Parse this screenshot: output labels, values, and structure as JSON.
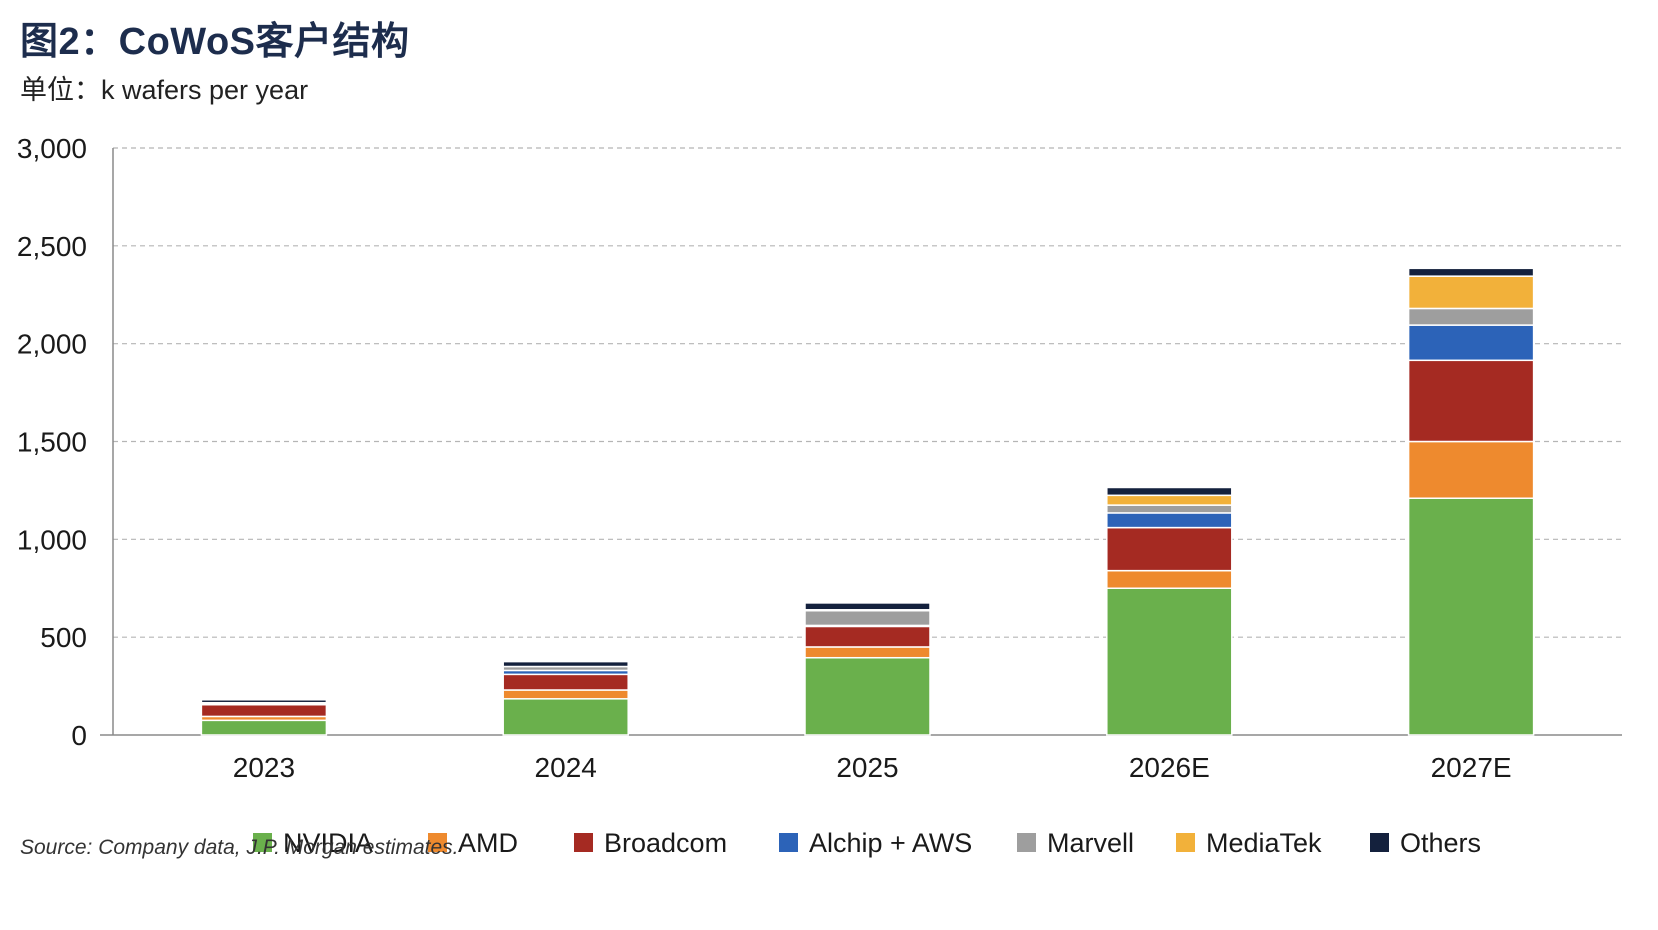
{
  "title": "图2：CoWoS客户结构",
  "subtitle": "单位：k wafers per year",
  "source": "Source: Company data, J.P. Morgan estimates.",
  "chart_data": {
    "type": "bar",
    "stacked": true,
    "categories": [
      "2023",
      "2024",
      "2025",
      "2026E",
      "2027E"
    ],
    "ylim": [
      0,
      3000
    ],
    "yticks": [
      0,
      500,
      1000,
      1500,
      2000,
      2500,
      3000
    ],
    "ytick_labels": [
      "0",
      "500",
      "1,000",
      "1,500",
      "2,000",
      "2,500",
      "3,000"
    ],
    "grid": true,
    "legend_position": "bottom",
    "series": [
      {
        "name": "NVIDIA",
        "color": "#6ab04c",
        "values": [
          75,
          185,
          395,
          750,
          1210
        ]
      },
      {
        "name": "AMD",
        "color": "#ee8a2e",
        "values": [
          20,
          45,
          55,
          90,
          290
        ]
      },
      {
        "name": "Broadcom",
        "color": "#a52a22",
        "values": [
          60,
          80,
          105,
          220,
          415
        ]
      },
      {
        "name": "Alchip + AWS",
        "color": "#2c63b8",
        "values": [
          5,
          20,
          5,
          75,
          180
        ]
      },
      {
        "name": "Marvell",
        "color": "#9e9e9e",
        "values": [
          5,
          20,
          75,
          40,
          85
        ]
      },
      {
        "name": "MediaTek",
        "color": "#f2b13a",
        "values": [
          0,
          0,
          5,
          50,
          165
        ]
      },
      {
        "name": "Others",
        "color": "#14213d",
        "values": [
          15,
          25,
          35,
          40,
          40
        ]
      }
    ]
  }
}
